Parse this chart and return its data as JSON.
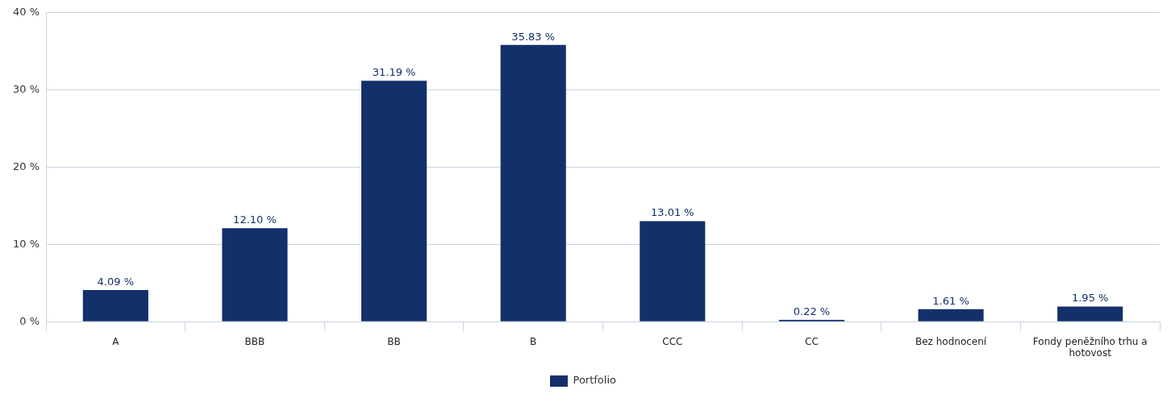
{
  "chart_data": {
    "type": "bar",
    "categories": [
      "A",
      "BBB",
      "BB",
      "B",
      "CCC",
      "CC",
      "Bez hodnocení",
      "Fondy peněžního trhu a hotovost"
    ],
    "series": [
      {
        "name": "Portfolio",
        "color": "#13306a",
        "values": [
          4.09,
          12.1,
          31.19,
          35.83,
          13.01,
          0.22,
          1.61,
          1.95
        ],
        "value_labels": [
          "4.09 %",
          "12.10 %",
          "31.19 %",
          "35.83 %",
          "13.01 %",
          "0.22 %",
          "1.61 %",
          "1.95 %"
        ]
      }
    ],
    "ylim": [
      0,
      40
    ],
    "yticks": [
      {
        "value": 0,
        "label": "0 %"
      },
      {
        "value": 10,
        "label": "10 %"
      },
      {
        "value": 20,
        "label": "20 %"
      },
      {
        "value": 30,
        "label": "30 %"
      },
      {
        "value": 40,
        "label": "40 %"
      }
    ],
    "grid": "y",
    "legend": "bottom"
  }
}
